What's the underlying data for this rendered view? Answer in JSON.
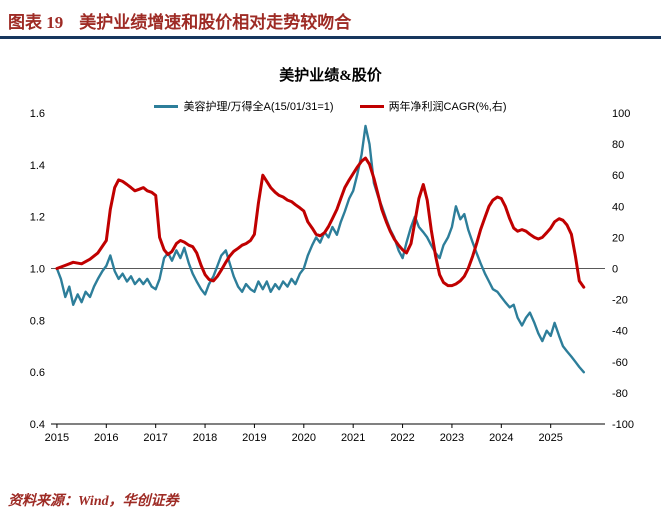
{
  "header": {
    "figure_label": "图表 19",
    "title": "美护业绩增速和股价相对走势较吻合"
  },
  "footer": {
    "source": "资料来源：Wind，华创证券"
  },
  "colors": {
    "title_red": "#9e2b25",
    "rule_navy": "#17375e",
    "line_blue": "#2d7e9a",
    "line_red": "#c00000",
    "zero_line": "#595959",
    "axis_black": "#000000"
  },
  "chart_data": {
    "type": "line",
    "title": "美护业绩&股价",
    "x_range": [
      2014.88,
      2026.1
    ],
    "x_ticks": [
      2015,
      2016,
      2017,
      2018,
      2019,
      2020,
      2021,
      2022,
      2023,
      2024,
      2025
    ],
    "left_axis": {
      "min": 0.4,
      "max": 1.6,
      "ticks": [
        0.4,
        0.6,
        0.8,
        1.0,
        1.2,
        1.4,
        1.6
      ]
    },
    "right_axis": {
      "min": -100,
      "max": 100,
      "ticks": [
        -100,
        -80,
        -60,
        -40,
        -20,
        0,
        20,
        40,
        60,
        80,
        100
      ]
    },
    "legend_position": "top",
    "grid": false,
    "series": [
      {
        "name": "美容护理/万得全A(15/01/31=1)",
        "axis": "left",
        "color": "#2d7e9a",
        "points": [
          [
            2015.0,
            1.0
          ],
          [
            2015.08,
            0.96
          ],
          [
            2015.17,
            0.89
          ],
          [
            2015.25,
            0.93
          ],
          [
            2015.33,
            0.86
          ],
          [
            2015.42,
            0.9
          ],
          [
            2015.5,
            0.87
          ],
          [
            2015.58,
            0.91
          ],
          [
            2015.67,
            0.89
          ],
          [
            2015.75,
            0.93
          ],
          [
            2015.83,
            0.96
          ],
          [
            2015.92,
            0.99
          ],
          [
            2016.0,
            1.01
          ],
          [
            2016.08,
            1.05
          ],
          [
            2016.17,
            0.99
          ],
          [
            2016.25,
            0.96
          ],
          [
            2016.33,
            0.98
          ],
          [
            2016.42,
            0.95
          ],
          [
            2016.5,
            0.97
          ],
          [
            2016.58,
            0.94
          ],
          [
            2016.67,
            0.96
          ],
          [
            2016.75,
            0.94
          ],
          [
            2016.83,
            0.96
          ],
          [
            2016.92,
            0.93
          ],
          [
            2017.0,
            0.92
          ],
          [
            2017.08,
            0.96
          ],
          [
            2017.17,
            1.04
          ],
          [
            2017.25,
            1.06
          ],
          [
            2017.33,
            1.03
          ],
          [
            2017.42,
            1.07
          ],
          [
            2017.5,
            1.04
          ],
          [
            2017.58,
            1.08
          ],
          [
            2017.67,
            1.02
          ],
          [
            2017.75,
            0.98
          ],
          [
            2017.83,
            0.95
          ],
          [
            2017.92,
            0.92
          ],
          [
            2018.0,
            0.9
          ],
          [
            2018.08,
            0.94
          ],
          [
            2018.17,
            0.97
          ],
          [
            2018.25,
            1.01
          ],
          [
            2018.33,
            1.05
          ],
          [
            2018.42,
            1.07
          ],
          [
            2018.5,
            1.02
          ],
          [
            2018.58,
            0.97
          ],
          [
            2018.67,
            0.93
          ],
          [
            2018.75,
            0.91
          ],
          [
            2018.83,
            0.94
          ],
          [
            2018.92,
            0.92
          ],
          [
            2019.0,
            0.91
          ],
          [
            2019.08,
            0.95
          ],
          [
            2019.17,
            0.92
          ],
          [
            2019.25,
            0.95
          ],
          [
            2019.33,
            0.91
          ],
          [
            2019.42,
            0.94
          ],
          [
            2019.5,
            0.92
          ],
          [
            2019.58,
            0.95
          ],
          [
            2019.67,
            0.93
          ],
          [
            2019.75,
            0.96
          ],
          [
            2019.83,
            0.94
          ],
          [
            2019.92,
            0.98
          ],
          [
            2020.0,
            1.0
          ],
          [
            2020.08,
            1.05
          ],
          [
            2020.17,
            1.09
          ],
          [
            2020.25,
            1.12
          ],
          [
            2020.33,
            1.1
          ],
          [
            2020.42,
            1.14
          ],
          [
            2020.5,
            1.12
          ],
          [
            2020.58,
            1.16
          ],
          [
            2020.67,
            1.13
          ],
          [
            2020.75,
            1.18
          ],
          [
            2020.83,
            1.22
          ],
          [
            2020.92,
            1.27
          ],
          [
            2021.0,
            1.3
          ],
          [
            2021.08,
            1.36
          ],
          [
            2021.17,
            1.44
          ],
          [
            2021.25,
            1.55
          ],
          [
            2021.33,
            1.48
          ],
          [
            2021.42,
            1.33
          ],
          [
            2021.5,
            1.28
          ],
          [
            2021.58,
            1.24
          ],
          [
            2021.67,
            1.19
          ],
          [
            2021.75,
            1.15
          ],
          [
            2021.83,
            1.12
          ],
          [
            2021.92,
            1.07
          ],
          [
            2022.0,
            1.04
          ],
          [
            2022.08,
            1.1
          ],
          [
            2022.17,
            1.16
          ],
          [
            2022.25,
            1.2
          ],
          [
            2022.33,
            1.16
          ],
          [
            2022.42,
            1.14
          ],
          [
            2022.5,
            1.12
          ],
          [
            2022.58,
            1.09
          ],
          [
            2022.67,
            1.06
          ],
          [
            2022.75,
            1.04
          ],
          [
            2022.83,
            1.09
          ],
          [
            2022.92,
            1.12
          ],
          [
            2023.0,
            1.16
          ],
          [
            2023.08,
            1.24
          ],
          [
            2023.17,
            1.19
          ],
          [
            2023.25,
            1.21
          ],
          [
            2023.33,
            1.15
          ],
          [
            2023.42,
            1.1
          ],
          [
            2023.5,
            1.06
          ],
          [
            2023.58,
            1.02
          ],
          [
            2023.67,
            0.98
          ],
          [
            2023.75,
            0.95
          ],
          [
            2023.83,
            0.92
          ],
          [
            2023.92,
            0.91
          ],
          [
            2024.0,
            0.89
          ],
          [
            2024.08,
            0.87
          ],
          [
            2024.17,
            0.85
          ],
          [
            2024.25,
            0.86
          ],
          [
            2024.33,
            0.81
          ],
          [
            2024.42,
            0.78
          ],
          [
            2024.5,
            0.81
          ],
          [
            2024.58,
            0.83
          ],
          [
            2024.67,
            0.79
          ],
          [
            2024.75,
            0.75
          ],
          [
            2024.83,
            0.72
          ],
          [
            2024.92,
            0.76
          ],
          [
            2025.0,
            0.74
          ],
          [
            2025.08,
            0.79
          ],
          [
            2025.17,
            0.74
          ],
          [
            2025.25,
            0.7
          ],
          [
            2025.33,
            0.68
          ],
          [
            2025.42,
            0.66
          ],
          [
            2025.5,
            0.64
          ],
          [
            2025.58,
            0.62
          ],
          [
            2025.67,
            0.6
          ]
        ]
      },
      {
        "name": "两年净利润CAGR(%,右)",
        "axis": "right",
        "color": "#c00000",
        "points": [
          [
            2015.0,
            0
          ],
          [
            2015.17,
            2
          ],
          [
            2015.33,
            4
          ],
          [
            2015.5,
            3
          ],
          [
            2015.67,
            6
          ],
          [
            2015.83,
            10
          ],
          [
            2016.0,
            18
          ],
          [
            2016.08,
            38
          ],
          [
            2016.17,
            52
          ],
          [
            2016.25,
            57
          ],
          [
            2016.33,
            56
          ],
          [
            2016.42,
            54
          ],
          [
            2016.5,
            52
          ],
          [
            2016.58,
            50
          ],
          [
            2016.67,
            51
          ],
          [
            2016.75,
            52
          ],
          [
            2016.83,
            50
          ],
          [
            2016.92,
            49
          ],
          [
            2017.0,
            47
          ],
          [
            2017.08,
            20
          ],
          [
            2017.17,
            12
          ],
          [
            2017.25,
            9
          ],
          [
            2017.33,
            11
          ],
          [
            2017.42,
            16
          ],
          [
            2017.5,
            18
          ],
          [
            2017.58,
            17
          ],
          [
            2017.67,
            15
          ],
          [
            2017.75,
            14
          ],
          [
            2017.83,
            10
          ],
          [
            2017.92,
            2
          ],
          [
            2018.0,
            -4
          ],
          [
            2018.08,
            -7
          ],
          [
            2018.17,
            -8
          ],
          [
            2018.25,
            -5
          ],
          [
            2018.33,
            -1
          ],
          [
            2018.42,
            4
          ],
          [
            2018.5,
            8
          ],
          [
            2018.58,
            11
          ],
          [
            2018.67,
            13
          ],
          [
            2018.75,
            15
          ],
          [
            2018.83,
            16
          ],
          [
            2018.92,
            18
          ],
          [
            2019.0,
            22
          ],
          [
            2019.08,
            42
          ],
          [
            2019.17,
            60
          ],
          [
            2019.25,
            56
          ],
          [
            2019.33,
            52
          ],
          [
            2019.42,
            49
          ],
          [
            2019.5,
            47
          ],
          [
            2019.58,
            46
          ],
          [
            2019.67,
            44
          ],
          [
            2019.75,
            43
          ],
          [
            2019.83,
            41
          ],
          [
            2019.92,
            39
          ],
          [
            2020.0,
            37
          ],
          [
            2020.08,
            30
          ],
          [
            2020.17,
            26
          ],
          [
            2020.25,
            22
          ],
          [
            2020.33,
            21
          ],
          [
            2020.42,
            23
          ],
          [
            2020.5,
            27
          ],
          [
            2020.58,
            32
          ],
          [
            2020.67,
            38
          ],
          [
            2020.75,
            45
          ],
          [
            2020.83,
            52
          ],
          [
            2020.92,
            57
          ],
          [
            2021.0,
            61
          ],
          [
            2021.08,
            65
          ],
          [
            2021.17,
            69
          ],
          [
            2021.25,
            71
          ],
          [
            2021.33,
            67
          ],
          [
            2021.42,
            58
          ],
          [
            2021.5,
            48
          ],
          [
            2021.58,
            38
          ],
          [
            2021.67,
            30
          ],
          [
            2021.75,
            24
          ],
          [
            2021.83,
            19
          ],
          [
            2021.92,
            15
          ],
          [
            2022.0,
            12
          ],
          [
            2022.08,
            10
          ],
          [
            2022.17,
            16
          ],
          [
            2022.25,
            30
          ],
          [
            2022.33,
            45
          ],
          [
            2022.42,
            54
          ],
          [
            2022.5,
            44
          ],
          [
            2022.58,
            25
          ],
          [
            2022.67,
            8
          ],
          [
            2022.75,
            -4
          ],
          [
            2022.83,
            -9
          ],
          [
            2022.92,
            -11
          ],
          [
            2023.0,
            -11
          ],
          [
            2023.08,
            -10
          ],
          [
            2023.17,
            -8
          ],
          [
            2023.25,
            -5
          ],
          [
            2023.33,
            0
          ],
          [
            2023.42,
            8
          ],
          [
            2023.5,
            16
          ],
          [
            2023.58,
            25
          ],
          [
            2023.67,
            33
          ],
          [
            2023.75,
            40
          ],
          [
            2023.83,
            44
          ],
          [
            2023.92,
            46
          ],
          [
            2024.0,
            45
          ],
          [
            2024.08,
            40
          ],
          [
            2024.17,
            32
          ],
          [
            2024.25,
            26
          ],
          [
            2024.33,
            24
          ],
          [
            2024.42,
            25
          ],
          [
            2024.5,
            24
          ],
          [
            2024.58,
            22
          ],
          [
            2024.67,
            20
          ],
          [
            2024.75,
            19
          ],
          [
            2024.83,
            20
          ],
          [
            2024.92,
            23
          ],
          [
            2025.0,
            26
          ],
          [
            2025.08,
            30
          ],
          [
            2025.17,
            32
          ],
          [
            2025.25,
            31
          ],
          [
            2025.33,
            28
          ],
          [
            2025.42,
            22
          ],
          [
            2025.5,
            8
          ],
          [
            2025.58,
            -8
          ],
          [
            2025.67,
            -12
          ]
        ]
      }
    ]
  }
}
